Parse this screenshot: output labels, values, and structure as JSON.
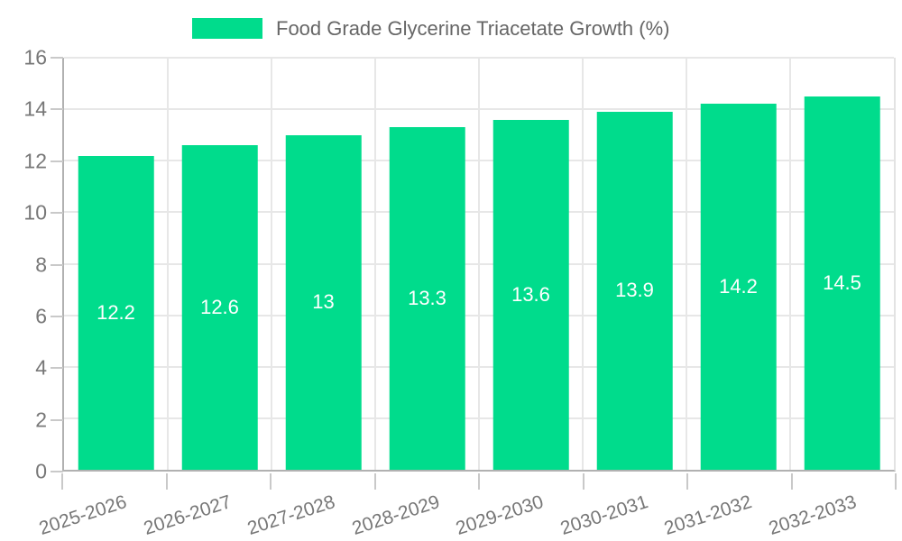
{
  "chart_data": {
    "type": "bar",
    "title": "",
    "legend_label": "Food Grade Glycerine Triacetate Growth (%)",
    "legend_position": "top",
    "categories": [
      "2025-2026",
      "2026-2027",
      "2027-2028",
      "2028-2029",
      "2029-2030",
      "2030-2031",
      "2031-2032",
      "2032-2033"
    ],
    "values": [
      12.2,
      12.6,
      13,
      13.3,
      13.6,
      13.9,
      14.2,
      14.5
    ],
    "bar_labels": [
      "12.2",
      "12.6",
      "13",
      "13.3",
      "13.6",
      "13.9",
      "14.2",
      "14.5"
    ],
    "xlabel": "",
    "ylabel": "",
    "ylim": [
      0,
      16
    ],
    "y_ticks": [
      0,
      2,
      4,
      6,
      8,
      10,
      12,
      14,
      16
    ],
    "y_tick_labels": [
      "0",
      "2",
      "4",
      "6",
      "8",
      "10",
      "12",
      "14",
      "16"
    ],
    "grid": true,
    "colors": {
      "bar": "#00dc8c",
      "grid": "#e7e7e7",
      "axis": "#b1b1b1",
      "tick": "#c9c9c9",
      "axis_label_text": "#777777",
      "legend_text": "#666666",
      "bar_label_text": "#ffffff",
      "background": "#ffffff"
    }
  }
}
